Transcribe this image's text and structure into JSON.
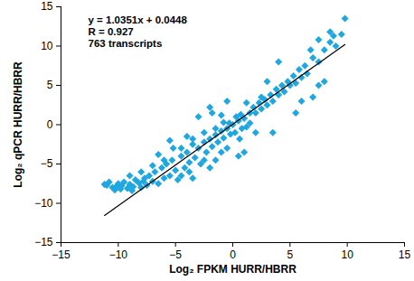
{
  "chart_data": {
    "type": "scatter",
    "x_label": "Log₂ FPKM HURR/HBRR",
    "y_label": "Log₂ qPCR HURR/HBRR",
    "annotations": [
      "y = 1.0351x + 0.0448",
      "R = 0.927",
      "763 transcripts"
    ],
    "color": "#1ea7e1",
    "marker": "diamond",
    "grid": false,
    "xlim": [
      -15,
      15
    ],
    "ylim": [
      -15,
      15
    ],
    "xticks": [
      -15,
      -10,
      -5,
      0,
      5,
      10,
      15
    ],
    "yticks": [
      -15,
      -10,
      -5,
      0,
      5,
      10,
      15
    ],
    "x": [
      -11,
      -10.5,
      -10.2,
      -10,
      -9.7,
      -9.5,
      -9.2,
      -9,
      -8.7,
      -8.5,
      -8.2,
      -8,
      -7.7,
      -7.5,
      -7.3,
      -7,
      -6.8,
      -6.5,
      -6.2,
      -6,
      -5.8,
      -5.5,
      -5.3,
      -5,
      -5.2,
      -4.8,
      -4.5,
      -4.2,
      -4,
      -3.8,
      -3.5,
      -3.3,
      -3,
      -2.8,
      -2.5,
      -2.3,
      -2,
      -1.8,
      -1.5,
      -1.3,
      -1,
      -0.8,
      -0.5,
      -0.3,
      0,
      0.2,
      0.5,
      0.7,
      1,
      1.2,
      1.5,
      1.8,
      2,
      2.3,
      2.5,
      2.8,
      3,
      3.3,
      3.5,
      3.8,
      4,
      4.3,
      4.5,
      4.8,
      5,
      5.3,
      5.5,
      5.8,
      6,
      6.3,
      6.5,
      7,
      7.5,
      8,
      8.5,
      9,
      9.5,
      9.8,
      -2,
      -1.8,
      -5.5,
      -3,
      -0.5,
      0.5,
      1,
      -4,
      2,
      3.5,
      5.5,
      6,
      7.5,
      7,
      4,
      3,
      8,
      6.8,
      7.5,
      8.5,
      8.8,
      -1.5,
      -0.8,
      0.3,
      0.8,
      1.5,
      -0.2,
      0.6,
      -2.5,
      -1,
      2.5,
      1.2,
      -3.5,
      -4.5,
      -6,
      -6.5,
      -7,
      -8,
      -9,
      -10.8,
      -11.2,
      -10.3,
      -9.8,
      -8.8,
      -7.8,
      -4.5,
      -3.8,
      -3.5,
      -2.5,
      -2,
      -1.5,
      -1,
      -0.5
    ],
    "values": [
      -7.7,
      -8,
      -7.9,
      -7.5,
      -7.8,
      -7.3,
      -8.1,
      -7.6,
      -7.9,
      -7,
      -7.4,
      -8,
      -6.8,
      -7.7,
      -6.5,
      -7.2,
      -6,
      -7.5,
      -5.5,
      -6.8,
      -5,
      -6.5,
      -4.5,
      -5.8,
      -3,
      -7,
      -4,
      -5.5,
      -3.5,
      -4.8,
      -2.5,
      -4.2,
      -3,
      -5,
      -2.2,
      -3.5,
      -1.8,
      -2.8,
      -1.3,
      -2.2,
      -0.8,
      -1.7,
      -0.5,
      0.2,
      0,
      -1,
      0.5,
      1.3,
      0.8,
      -0.3,
      1.5,
      2.2,
      1.5,
      2.8,
      2,
      3.2,
      2.5,
      3.8,
      3,
      4.5,
      3.8,
      5,
      4.2,
      5.5,
      5,
      6.2,
      5.3,
      7,
      6,
      7.5,
      6.5,
      8.5,
      8,
      9.5,
      10.5,
      10,
      11.5,
      13.5,
      2.2,
      1.5,
      -2,
      1,
      3,
      -4,
      -3.5,
      -1.5,
      -1,
      -1,
      1.5,
      3,
      5,
      3.5,
      8,
      5.5,
      5.5,
      9.5,
      10.8,
      11.8,
      11.3,
      -0.5,
      0.3,
      1,
      -0.5,
      0.2,
      -1.2,
      -1.8,
      -1,
      1.2,
      3.5,
      2.8,
      -1.8,
      -3,
      -4.5,
      -3.8,
      -5.2,
      -6,
      -6.5,
      -7.3,
      -7.6,
      -8.3,
      -8.2,
      -8.4,
      -7.2,
      -6.5,
      -6,
      -6.8,
      -4.5,
      -5.5,
      -4.5,
      -3.5,
      -3
    ],
    "fit_line": {
      "x": [
        -11.2,
        9.8
      ],
      "y": [
        -11.55,
        10.19
      ],
      "color": "#000000"
    }
  }
}
